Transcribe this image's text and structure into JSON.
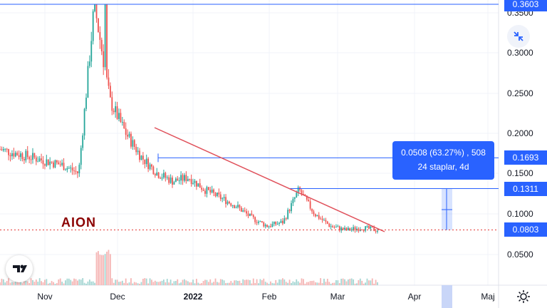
{
  "symbol": "AION",
  "price_axis": {
    "ticks": [
      {
        "label": "0.3500",
        "value": 0.35
      },
      {
        "label": "0.3000",
        "value": 0.3
      },
      {
        "label": "0.2500",
        "value": 0.25
      },
      {
        "label": "0.2000",
        "value": 0.2
      },
      {
        "label": "0.1500",
        "value": 0.15
      },
      {
        "label": "0.1000",
        "value": 0.1
      },
      {
        "label": "0.0500",
        "value": 0.05
      }
    ]
  },
  "time_axis": {
    "ticks": [
      {
        "label": "Nov",
        "i": 0
      },
      {
        "label": "Dec",
        "i": 1
      },
      {
        "label": "2022",
        "i": 2
      },
      {
        "label": "Feb",
        "i": 3
      },
      {
        "label": "Mar",
        "i": 4
      },
      {
        "label": "Apr",
        "i": 5
      },
      {
        "label": "Maj",
        "i": 6
      }
    ]
  },
  "price_tags": [
    {
      "label": "0.3603",
      "value": 0.3603,
      "color": "#2962ff"
    },
    {
      "label": "0.1693",
      "value": 0.1693,
      "color": "#2962ff"
    },
    {
      "label": "0.1311",
      "value": 0.1311,
      "color": "#2962ff"
    },
    {
      "label": "0.0803",
      "value": 0.0803,
      "color": "#2962ff"
    }
  ],
  "measure": {
    "line1": "0.0508 (63.27%) , 508",
    "line2": "24 staplar, 4d"
  },
  "colors": {
    "accent": "#2962ff",
    "trendline": "#e0505a",
    "candle_up": "#26a69a",
    "candle_down": "#ef5350",
    "current_price_line": "#e53935",
    "ticker": "#8b0000"
  },
  "chart_data": {
    "type": "candlestick",
    "ylim": [
      0.02,
      0.37
    ],
    "approx_close_path": [
      0.18,
      0.175,
      0.17,
      0.165,
      0.16,
      0.15,
      0.36,
      0.24,
      0.2,
      0.17,
      0.15,
      0.14,
      0.145,
      0.13,
      0.12,
      0.11,
      0.095,
      0.085,
      0.09,
      0.13,
      0.1,
      0.085,
      0.08,
      0.083,
      0.08
    ]
  },
  "icons": {
    "collapse": "collapse-arrows-icon",
    "logo": "tradingview-logo-icon",
    "settings": "gear-icon"
  }
}
